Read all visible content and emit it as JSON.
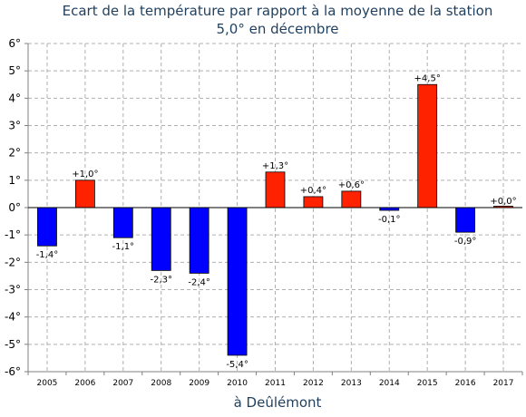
{
  "chart_data": {
    "type": "bar",
    "title_line1": "Ecart de la température par rapport à la moyenne de la station",
    "title_line2": "5,0° en décembre",
    "xlabel": "à Deûlémont",
    "ylabel": "",
    "ylim": [
      -6,
      6
    ],
    "y_ticks": [
      "-6°",
      "-5°",
      "-4°",
      "-3°",
      "-2°",
      "-1°",
      "0°",
      "1°",
      "2°",
      "3°",
      "4°",
      "5°",
      "6°"
    ],
    "categories": [
      "2005",
      "2006",
      "2007",
      "2008",
      "2009",
      "2010",
      "2011",
      "2012",
      "2013",
      "2014",
      "2015",
      "2016",
      "2017"
    ],
    "values": [
      -1.4,
      1.0,
      -1.1,
      -2.3,
      -2.4,
      -5.4,
      1.3,
      0.4,
      0.6,
      -0.1,
      4.5,
      -0.9,
      0.0
    ],
    "data_labels": [
      "-1,4°",
      "+1,0°",
      "-1,1°",
      "-2,3°",
      "-2,4°",
      "-5,4°",
      "+1,3°",
      "+0,4°",
      "+0,6°",
      "-0,1°",
      "+4,5°",
      "-0,9°",
      "+0,0°"
    ],
    "colors": {
      "positive": "#ff2200",
      "negative": "#0000ff",
      "grid": "#b0b0b0",
      "axis": "#808080"
    },
    "grid": true
  }
}
